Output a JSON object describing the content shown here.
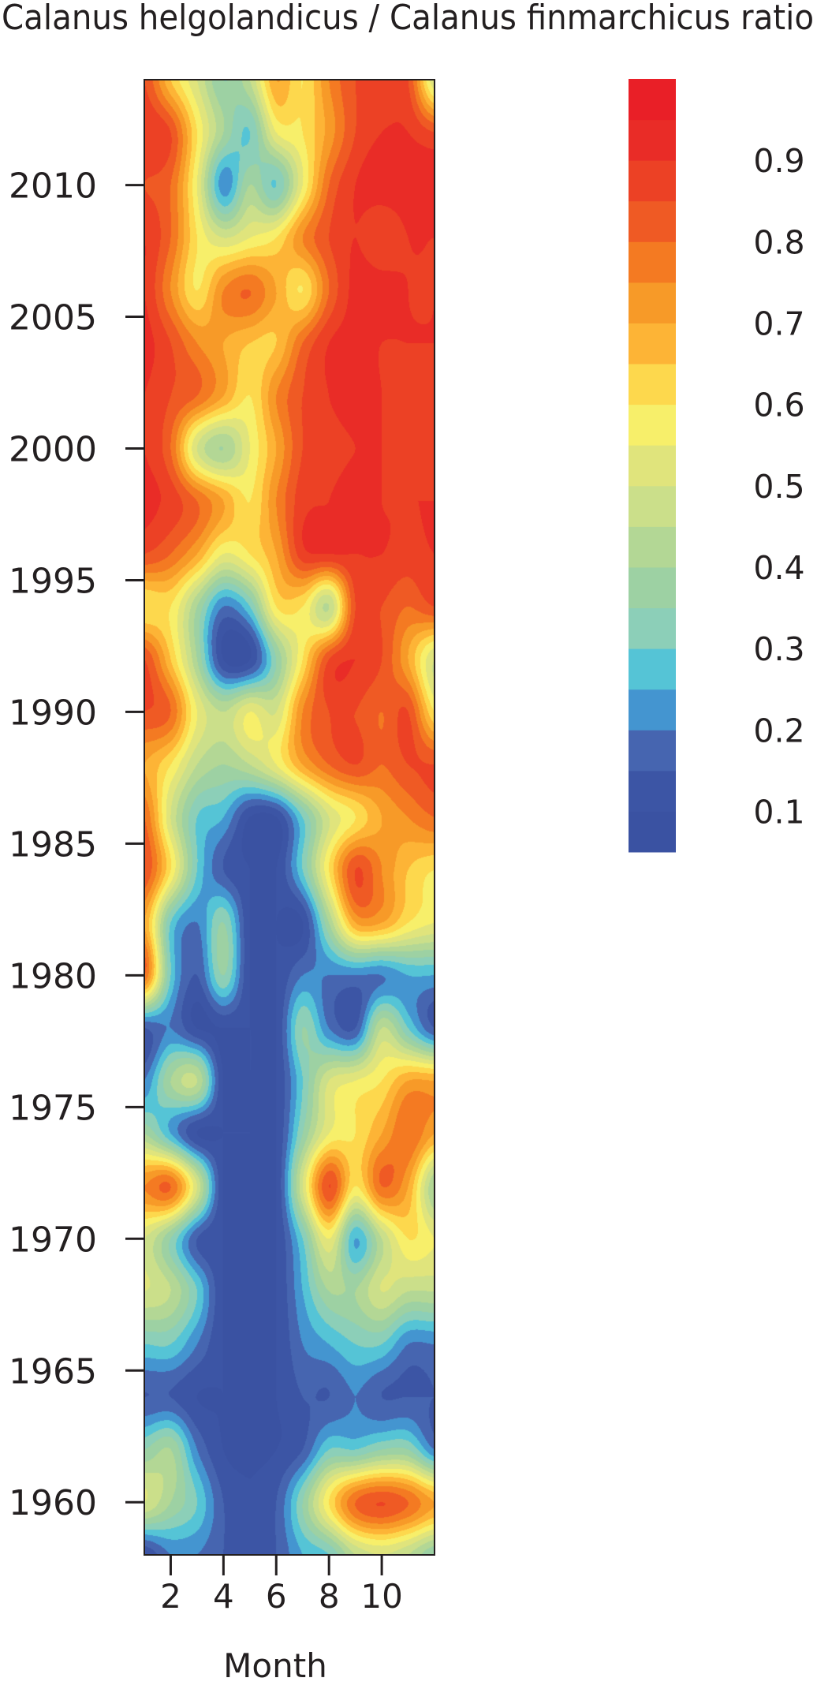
{
  "chart_data": {
    "type": "heatmap",
    "title": "Calanus helgolandicus / Calanus finmarchicus ratio",
    "xlabel": "Month",
    "ylabel": "",
    "xlim": [
      1,
      12
    ],
    "ylim": [
      1958,
      2014
    ],
    "x_ticks": [
      "2",
      "4",
      "6",
      "8",
      "10"
    ],
    "x_tick_values": [
      2,
      4,
      6,
      8,
      10
    ],
    "y_ticks": [
      "1960",
      "1965",
      "1970",
      "1975",
      "1980",
      "1985",
      "1990",
      "1995",
      "2000",
      "2005",
      "2010"
    ],
    "y_tick_values": [
      1960,
      1965,
      1970,
      1975,
      1980,
      1985,
      1990,
      1995,
      2000,
      2005,
      2010
    ],
    "grid": false,
    "legend": "right",
    "months": [
      1,
      2,
      3,
      4,
      5,
      6,
      7,
      8,
      9,
      10,
      11,
      12
    ],
    "years": [
      2014,
      2012,
      2010,
      2008,
      2006,
      2004,
      2002,
      2000,
      1998,
      1996,
      1994,
      1992,
      1990,
      1988,
      1986,
      1984,
      1982,
      1980,
      1978,
      1976,
      1974,
      1972,
      1970,
      1968,
      1966,
      1964,
      1962,
      1960,
      1958
    ],
    "values": [
      [
        0.85,
        0.65,
        0.5,
        0.35,
        0.45,
        0.7,
        0.6,
        0.75,
        0.85,
        0.85,
        0.85,
        0.5
      ],
      [
        0.9,
        0.85,
        0.6,
        0.4,
        0.3,
        0.55,
        0.6,
        0.72,
        0.85,
        0.9,
        0.9,
        0.85
      ],
      [
        0.85,
        0.8,
        0.55,
        0.22,
        0.4,
        0.3,
        0.55,
        0.8,
        0.9,
        0.93,
        0.93,
        0.93
      ],
      [
        0.9,
        0.8,
        0.6,
        0.5,
        0.55,
        0.6,
        0.75,
        0.85,
        0.9,
        0.85,
        0.9,
        0.9
      ],
      [
        0.9,
        0.75,
        0.6,
        0.75,
        0.8,
        0.7,
        0.6,
        0.8,
        0.92,
        0.93,
        0.9,
        0.9
      ],
      [
        0.92,
        0.85,
        0.75,
        0.7,
        0.65,
        0.65,
        0.8,
        0.9,
        0.92,
        0.9,
        0.9,
        0.9
      ],
      [
        0.9,
        0.85,
        0.8,
        0.7,
        0.6,
        0.75,
        0.85,
        0.9,
        0.92,
        0.9,
        0.88,
        0.9
      ],
      [
        0.9,
        0.8,
        0.5,
        0.4,
        0.55,
        0.7,
        0.85,
        0.88,
        0.9,
        0.9,
        0.88,
        0.9
      ],
      [
        0.92,
        0.88,
        0.8,
        0.7,
        0.6,
        0.75,
        0.88,
        0.9,
        0.92,
        0.9,
        0.9,
        0.9
      ],
      [
        0.85,
        0.8,
        0.7,
        0.55,
        0.6,
        0.7,
        0.88,
        0.9,
        0.9,
        0.9,
        0.88,
        0.9
      ],
      [
        0.6,
        0.6,
        0.4,
        0.2,
        0.3,
        0.6,
        0.6,
        0.45,
        0.85,
        0.85,
        0.8,
        0.85
      ],
      [
        0.85,
        0.65,
        0.4,
        0.1,
        0.1,
        0.35,
        0.6,
        0.85,
        0.9,
        0.85,
        0.7,
        0.5
      ],
      [
        0.85,
        0.8,
        0.55,
        0.45,
        0.55,
        0.5,
        0.75,
        0.85,
        0.85,
        0.8,
        0.85,
        0.6
      ],
      [
        0.7,
        0.6,
        0.45,
        0.4,
        0.45,
        0.55,
        0.7,
        0.8,
        0.85,
        0.8,
        0.85,
        0.85
      ],
      [
        0.8,
        0.5,
        0.3,
        0.25,
        0.1,
        0.1,
        0.3,
        0.5,
        0.6,
        0.7,
        0.75,
        0.8
      ],
      [
        0.85,
        0.6,
        0.3,
        0.15,
        0.1,
        0.1,
        0.3,
        0.6,
        0.85,
        0.75,
        0.65,
        0.6
      ],
      [
        0.7,
        0.3,
        0.2,
        0.35,
        0.1,
        0.1,
        0.1,
        0.4,
        0.7,
        0.7,
        0.6,
        0.55
      ],
      [
        0.8,
        0.3,
        0.15,
        0.35,
        0.1,
        0.1,
        0.2,
        0.2,
        0.2,
        0.2,
        0.25,
        0.25
      ],
      [
        0.15,
        0.2,
        0.1,
        0.1,
        0.1,
        0.1,
        0.35,
        0.2,
        0.15,
        0.45,
        0.3,
        0.15
      ],
      [
        0.2,
        0.4,
        0.45,
        0.1,
        0.1,
        0.1,
        0.3,
        0.5,
        0.55,
        0.6,
        0.7,
        0.7
      ],
      [
        0.4,
        0.25,
        0.1,
        0.1,
        0.1,
        0.1,
        0.35,
        0.55,
        0.6,
        0.7,
        0.8,
        0.7
      ],
      [
        0.75,
        0.8,
        0.5,
        0.1,
        0.1,
        0.1,
        0.5,
        0.85,
        0.6,
        0.8,
        0.7,
        0.4
      ],
      [
        0.5,
        0.35,
        0.15,
        0.1,
        0.1,
        0.1,
        0.3,
        0.55,
        0.25,
        0.45,
        0.6,
        0.55
      ],
      [
        0.5,
        0.45,
        0.3,
        0.1,
        0.1,
        0.1,
        0.25,
        0.4,
        0.4,
        0.5,
        0.45,
        0.45
      ],
      [
        0.3,
        0.3,
        0.2,
        0.1,
        0.1,
        0.1,
        0.2,
        0.25,
        0.3,
        0.3,
        0.2,
        0.2
      ],
      [
        0.15,
        0.15,
        0.1,
        0.1,
        0.1,
        0.1,
        0.15,
        0.15,
        0.2,
        0.15,
        0.15,
        0.15
      ],
      [
        0.35,
        0.4,
        0.2,
        0.1,
        0.1,
        0.1,
        0.15,
        0.3,
        0.3,
        0.35,
        0.35,
        0.2
      ],
      [
        0.5,
        0.4,
        0.3,
        0.15,
        0.1,
        0.15,
        0.35,
        0.6,
        0.8,
        0.85,
        0.8,
        0.7
      ],
      [
        0.1,
        0.2,
        0.2,
        0.15,
        0.1,
        0.15,
        0.25,
        0.3,
        0.45,
        0.5,
        0.45,
        0.35
      ]
    ],
    "colorbar": {
      "levels": [
        0.05,
        0.1,
        0.15,
        0.2,
        0.25,
        0.3,
        0.35,
        0.4,
        0.45,
        0.5,
        0.55,
        0.6,
        0.65,
        0.7,
        0.75,
        0.8,
        0.85,
        0.9,
        0.95,
        1.0
      ],
      "colors": [
        "#3a52a2",
        "#3c55a5",
        "#4665b0",
        "#4495d0",
        "#55c4d6",
        "#8ccfb8",
        "#9dd1a3",
        "#b3d795",
        "#cbdf8a",
        "#e0e47c",
        "#f7ef6a",
        "#fdd84d",
        "#fdb436",
        "#f79a28",
        "#f47a22",
        "#ef5a24",
        "#ec4125",
        "#e92c27",
        "#e91f27"
      ],
      "tick_labels": [
        "0.1",
        "0.2",
        "0.3",
        "0.4",
        "0.5",
        "0.6",
        "0.7",
        "0.8",
        "0.9"
      ],
      "tick_values": [
        0.1,
        0.2,
        0.3,
        0.4,
        0.5,
        0.6,
        0.7,
        0.8,
        0.9
      ]
    }
  }
}
